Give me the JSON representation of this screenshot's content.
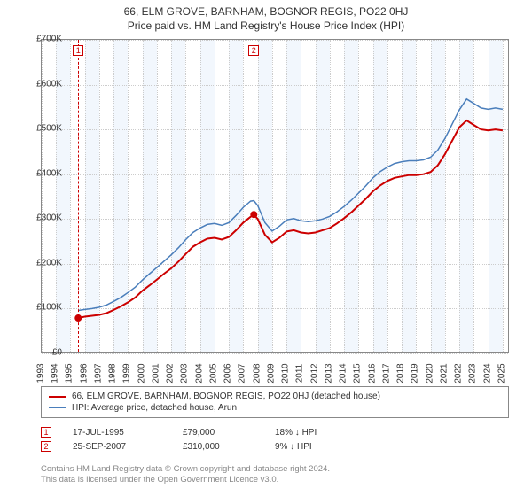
{
  "title": "66, ELM GROVE, BARNHAM, BOGNOR REGIS, PO22 0HJ",
  "subtitle": "Price paid vs. HM Land Registry's House Price Index (HPI)",
  "chart": {
    "type": "line",
    "background_color": "#ffffff",
    "grid_color": "#cccccc",
    "border_color": "#888888",
    "xlim": [
      1993,
      2025.5
    ],
    "ylim": [
      0,
      700
    ],
    "y_ticks": [
      0,
      100,
      200,
      300,
      400,
      500,
      600,
      700
    ],
    "y_tick_labels": [
      "£0",
      "£100K",
      "£200K",
      "£300K",
      "£400K",
      "£500K",
      "£600K",
      "£700K"
    ],
    "x_ticks": [
      1993,
      1994,
      1995,
      1996,
      1997,
      1998,
      1999,
      2000,
      2001,
      2002,
      2003,
      2004,
      2005,
      2006,
      2007,
      2008,
      2009,
      2010,
      2011,
      2012,
      2013,
      2014,
      2015,
      2016,
      2017,
      2018,
      2019,
      2020,
      2021,
      2022,
      2023,
      2024,
      2025
    ],
    "shade_bands": [
      {
        "from": 1994,
        "to": 1995,
        "color": "#eaf2fb"
      },
      {
        "from": 1996,
        "to": 1997,
        "color": "#eaf2fb"
      },
      {
        "from": 1998,
        "to": 1999,
        "color": "#eaf2fb"
      },
      {
        "from": 2000,
        "to": 2001,
        "color": "#eaf2fb"
      },
      {
        "from": 2002,
        "to": 2003,
        "color": "#eaf2fb"
      },
      {
        "from": 2004,
        "to": 2005,
        "color": "#eaf2fb"
      },
      {
        "from": 2006,
        "to": 2007,
        "color": "#eaf2fb"
      },
      {
        "from": 2008,
        "to": 2009,
        "color": "#eaf2fb"
      },
      {
        "from": 2010,
        "to": 2011,
        "color": "#eaf2fb"
      },
      {
        "from": 2012,
        "to": 2013,
        "color": "#eaf2fb"
      },
      {
        "from": 2014,
        "to": 2015,
        "color": "#eaf2fb"
      },
      {
        "from": 2016,
        "to": 2017,
        "color": "#eaf2fb"
      },
      {
        "from": 2018,
        "to": 2019,
        "color": "#eaf2fb"
      },
      {
        "from": 2020,
        "to": 2021,
        "color": "#eaf2fb"
      },
      {
        "from": 2022,
        "to": 2023,
        "color": "#eaf2fb"
      },
      {
        "from": 2024,
        "to": 2025,
        "color": "#eaf2fb"
      }
    ],
    "series": [
      {
        "name": "property",
        "label": "66, ELM GROVE, BARNHAM, BOGNOR REGIS, PO22 0HJ (detached house)",
        "color": "#cc0000",
        "line_width": 2,
        "points": [
          [
            1995.54,
            79
          ],
          [
            1996,
            82
          ],
          [
            1996.5,
            84
          ],
          [
            1997,
            86
          ],
          [
            1997.5,
            90
          ],
          [
            1998,
            97
          ],
          [
            1998.5,
            105
          ],
          [
            1999,
            114
          ],
          [
            1999.5,
            125
          ],
          [
            2000,
            140
          ],
          [
            2000.5,
            152
          ],
          [
            2001,
            165
          ],
          [
            2001.5,
            178
          ],
          [
            2002,
            190
          ],
          [
            2002.5,
            205
          ],
          [
            2003,
            222
          ],
          [
            2003.5,
            238
          ],
          [
            2004,
            248
          ],
          [
            2004.5,
            256
          ],
          [
            2005,
            258
          ],
          [
            2005.5,
            254
          ],
          [
            2006,
            260
          ],
          [
            2006.5,
            275
          ],
          [
            2007,
            292
          ],
          [
            2007.5,
            305
          ],
          [
            2007.73,
            310
          ],
          [
            2008,
            300
          ],
          [
            2008.5,
            265
          ],
          [
            2009,
            248
          ],
          [
            2009.5,
            258
          ],
          [
            2010,
            272
          ],
          [
            2010.5,
            275
          ],
          [
            2011,
            270
          ],
          [
            2011.5,
            268
          ],
          [
            2012,
            270
          ],
          [
            2012.5,
            275
          ],
          [
            2013,
            280
          ],
          [
            2013.5,
            290
          ],
          [
            2014,
            302
          ],
          [
            2014.5,
            315
          ],
          [
            2015,
            330
          ],
          [
            2015.5,
            345
          ],
          [
            2016,
            362
          ],
          [
            2016.5,
            375
          ],
          [
            2017,
            385
          ],
          [
            2017.5,
            392
          ],
          [
            2018,
            395
          ],
          [
            2018.5,
            398
          ],
          [
            2019,
            398
          ],
          [
            2019.5,
            400
          ],
          [
            2020,
            405
          ],
          [
            2020.5,
            420
          ],
          [
            2021,
            445
          ],
          [
            2021.5,
            475
          ],
          [
            2022,
            505
          ],
          [
            2022.5,
            520
          ],
          [
            2023,
            510
          ],
          [
            2023.5,
            500
          ],
          [
            2024,
            498
          ],
          [
            2024.5,
            500
          ],
          [
            2025,
            498
          ]
        ]
      },
      {
        "name": "hpi",
        "label": "HPI: Average price, detached house, Arun",
        "color": "#4a7ebb",
        "line_width": 1.5,
        "points": [
          [
            1995.54,
            96
          ],
          [
            1996,
            98
          ],
          [
            1996.5,
            100
          ],
          [
            1997,
            103
          ],
          [
            1997.5,
            108
          ],
          [
            1998,
            116
          ],
          [
            1998.5,
            125
          ],
          [
            1999,
            136
          ],
          [
            1999.5,
            148
          ],
          [
            2000,
            164
          ],
          [
            2000.5,
            178
          ],
          [
            2001,
            192
          ],
          [
            2001.5,
            206
          ],
          [
            2002,
            220
          ],
          [
            2002.5,
            236
          ],
          [
            2003,
            254
          ],
          [
            2003.5,
            270
          ],
          [
            2004,
            280
          ],
          [
            2004.5,
            288
          ],
          [
            2005,
            290
          ],
          [
            2005.5,
            286
          ],
          [
            2006,
            292
          ],
          [
            2006.5,
            308
          ],
          [
            2007,
            326
          ],
          [
            2007.5,
            340
          ],
          [
            2007.73,
            341
          ],
          [
            2008,
            330
          ],
          [
            2008.5,
            292
          ],
          [
            2009,
            273
          ],
          [
            2009.5,
            284
          ],
          [
            2010,
            298
          ],
          [
            2010.5,
            301
          ],
          [
            2011,
            296
          ],
          [
            2011.5,
            294
          ],
          [
            2012,
            296
          ],
          [
            2012.5,
            300
          ],
          [
            2013,
            306
          ],
          [
            2013.5,
            316
          ],
          [
            2014,
            328
          ],
          [
            2014.5,
            342
          ],
          [
            2015,
            358
          ],
          [
            2015.5,
            374
          ],
          [
            2016,
            392
          ],
          [
            2016.5,
            406
          ],
          [
            2017,
            416
          ],
          [
            2017.5,
            424
          ],
          [
            2018,
            428
          ],
          [
            2018.5,
            430
          ],
          [
            2019,
            430
          ],
          [
            2019.5,
            432
          ],
          [
            2020,
            438
          ],
          [
            2020.5,
            454
          ],
          [
            2021,
            480
          ],
          [
            2021.5,
            512
          ],
          [
            2022,
            544
          ],
          [
            2022.5,
            568
          ],
          [
            2023,
            558
          ],
          [
            2023.5,
            548
          ],
          [
            2024,
            545
          ],
          [
            2024.5,
            548
          ],
          [
            2025,
            545
          ]
        ]
      }
    ],
    "sale_markers": [
      {
        "n": "1",
        "x": 1995.54,
        "y": 79
      },
      {
        "n": "2",
        "x": 2007.73,
        "y": 310
      }
    ]
  },
  "legend": {
    "items": [
      {
        "color": "#cc0000",
        "width": 2,
        "label": "66, ELM GROVE, BARNHAM, BOGNOR REGIS, PO22 0HJ (detached house)"
      },
      {
        "color": "#4a7ebb",
        "width": 1.5,
        "label": "HPI: Average price, detached house, Arun"
      }
    ]
  },
  "sales": [
    {
      "n": "1",
      "date": "17-JUL-1995",
      "price": "£79,000",
      "diff": "18% ↓ HPI"
    },
    {
      "n": "2",
      "date": "25-SEP-2007",
      "price": "£310,000",
      "diff": "9% ↓ HPI"
    }
  ],
  "footnote_line1": "Contains HM Land Registry data © Crown copyright and database right 2024.",
  "footnote_line2": "This data is licensed under the Open Government Licence v3.0.",
  "fonts": {
    "title_size": 12,
    "axis_label_size": 10,
    "legend_size": 10,
    "footnote_size": 9.5
  }
}
